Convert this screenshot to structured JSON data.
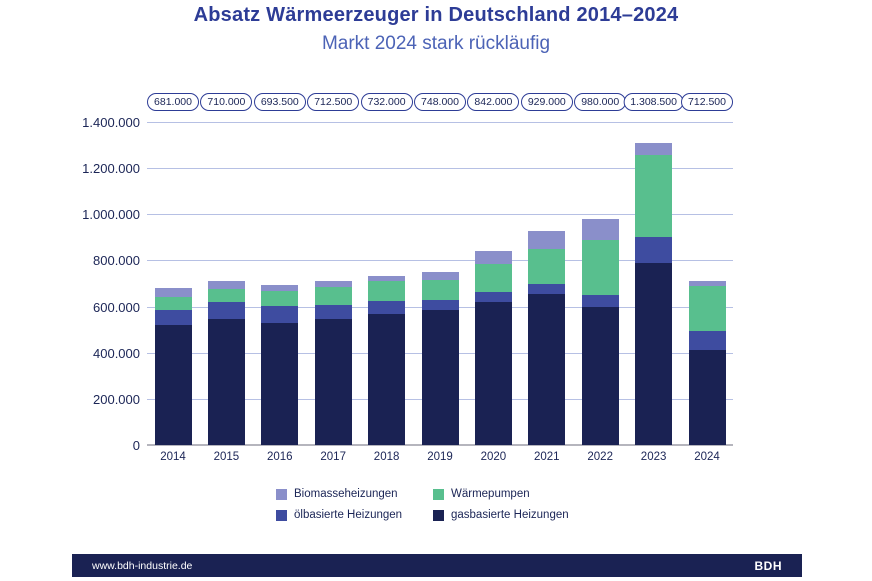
{
  "title": "Absatz Wärmeerzeuger in Deutschland 2014–2024",
  "subtitle": "Markt 2024 stark rückläufig",
  "footer": {
    "url": "www.bdh-industrie.de",
    "logo": "BDH"
  },
  "legend": {
    "items": [
      {
        "label": "Biomasseheizungen",
        "color": "#8a8fca"
      },
      {
        "label": "Wärmepumpen",
        "color": "#58bf8e"
      },
      {
        "label": "ölbasierte Heizungen",
        "color": "#3e4ca0"
      },
      {
        "label": "gasbasierte Heizungen",
        "color": "#1a2253"
      }
    ]
  },
  "colors": {
    "title": "#2d3c96",
    "subtitle": "#4c63b6",
    "axis_text": "#1b2556",
    "gridline": "#b6c0e4",
    "baseline": "#b5b5bd",
    "footer_bg": "#1a2253"
  },
  "chart_data": {
    "type": "bar",
    "stacked": true,
    "title": "Absatz Wärmeerzeuger in Deutschland 2014–2024",
    "subtitle": "Markt 2024 stark rückläufig",
    "categories": [
      "2014",
      "2015",
      "2016",
      "2017",
      "2018",
      "2019",
      "2020",
      "2021",
      "2022",
      "2023",
      "2024"
    ],
    "total_labels": [
      "681.000",
      "710.000",
      "693.500",
      "712.500",
      "732.000",
      "748.000",
      "842.000",
      "929.000",
      "980.000",
      "1.308.500",
      "712.500"
    ],
    "totals": [
      681000,
      710000,
      693500,
      712500,
      732000,
      748000,
      842000,
      929000,
      980000,
      1308500,
      712500
    ],
    "series": [
      {
        "name": "gasbasierte Heizungen",
        "color": "#1a2253",
        "values": [
          521500,
          546000,
          531000,
          545000,
          566000,
          585000,
          620000,
          655000,
          598000,
          790500,
          413000
        ]
      },
      {
        "name": "ölbasierte Heizungen",
        "color": "#3e4ca0",
        "values": [
          63500,
          73000,
          70000,
          61500,
          59000,
          45000,
          42500,
          42500,
          52500,
          112000,
          82000
        ]
      },
      {
        "name": "Wärmepumpen",
        "color": "#58bf8e",
        "values": [
          58000,
          57000,
          66500,
          78000,
          84000,
          86000,
          120000,
          154000,
          236000,
          356000,
          193000
        ]
      },
      {
        "name": "Biomasseheizungen",
        "color": "#8a8fca",
        "values": [
          38000,
          34000,
          26000,
          28000,
          23000,
          32000,
          59500,
          77500,
          93500,
          50000,
          24500
        ]
      }
    ],
    "y_ticks": [
      "1.400.000",
      "1.200.000",
      "1.000.000",
      "800.000",
      "600.000",
      "400.000",
      "200.000",
      "0"
    ],
    "ylim": [
      0,
      1400000
    ],
    "xlabel": "",
    "ylabel": "",
    "grid": true,
    "legend_position": "bottom",
    "series_values_note": "segment values estimated from gridlines; totals are labeled on chart"
  }
}
